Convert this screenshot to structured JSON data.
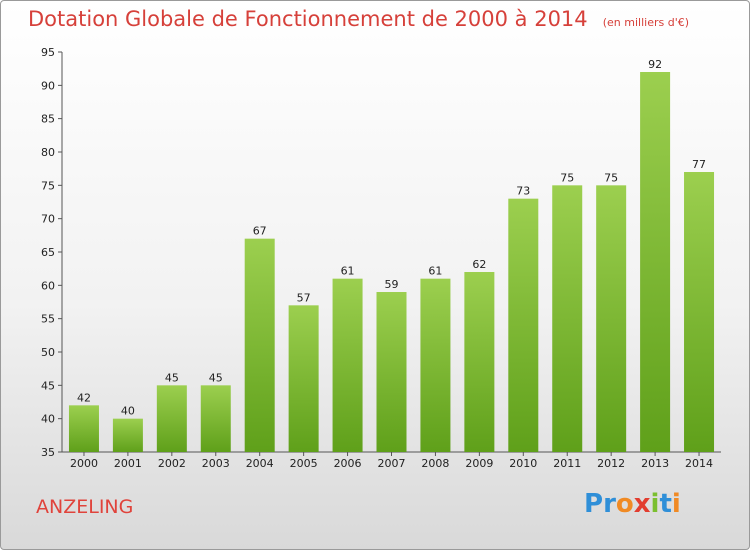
{
  "title": "Dotation Globale de Fonctionnement de 2000 à 2014",
  "unit": "(en milliers d'€)",
  "commune": "ANZELING",
  "logo": {
    "letters": [
      "P",
      "r",
      "o",
      "x",
      "i",
      "t",
      "i"
    ],
    "colors": [
      "#2f8fd8",
      "#2f8fd8",
      "#f08a24",
      "#e23d2f",
      "#7bbf2f",
      "#2f8fd8",
      "#f08a24"
    ]
  },
  "colors": {
    "title": "#d6403a",
    "bar_top": "#9ccf4f",
    "bar_bottom": "#5fa01a"
  },
  "chart_data": {
    "type": "bar",
    "categories": [
      "2000",
      "2001",
      "2002",
      "2003",
      "2004",
      "2005",
      "2006",
      "2007",
      "2008",
      "2009",
      "2010",
      "2011",
      "2012",
      "2013",
      "2014"
    ],
    "values": [
      42,
      40,
      45,
      45,
      67,
      57,
      61,
      59,
      61,
      62,
      73,
      75,
      75,
      92,
      77
    ],
    "ylim": [
      35,
      95
    ],
    "yticks": [
      35,
      40,
      45,
      50,
      55,
      60,
      65,
      70,
      75,
      80,
      85,
      90,
      95
    ],
    "grid": false
  }
}
